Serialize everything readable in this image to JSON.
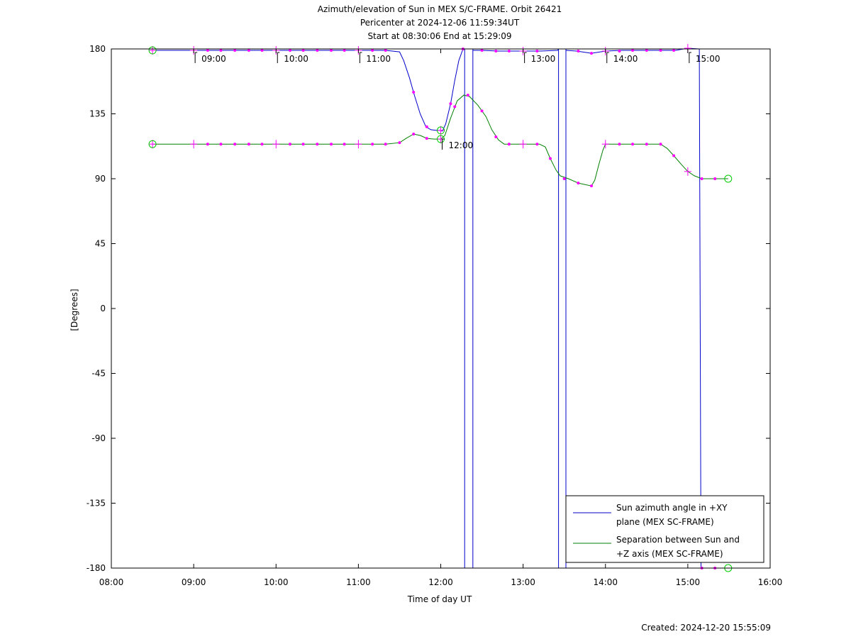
{
  "chart_data": {
    "type": "line",
    "title_lines": [
      "Azimuth/elevation of Sun in MEX S/C-FRAME.  Orbit 26421",
      "Pericenter at 2024-12-06 11:59:34UT",
      "Start at 08:30:06 End at 15:29:09"
    ],
    "xlabel": "Time of day UT",
    "ylabel": "[Degrees]",
    "xlim": [
      8.0,
      16.0
    ],
    "ylim": [
      -180,
      180
    ],
    "x_ticks": [
      "08:00",
      "09:00",
      "10:00",
      "11:00",
      "12:00",
      "13:00",
      "14:00",
      "15:00",
      "16:00"
    ],
    "y_ticks": [
      180,
      135,
      90,
      45,
      0,
      -45,
      -90,
      -135,
      -180
    ],
    "hour_annotations": [
      {
        "x": 9.0,
        "y": 180,
        "label": "09:00"
      },
      {
        "x": 10.0,
        "y": 180,
        "label": "10:00"
      },
      {
        "x": 11.0,
        "y": 180,
        "label": "11:00"
      },
      {
        "x": 12.0,
        "y": 120,
        "label": "12:00"
      },
      {
        "x": 13.0,
        "y": 180,
        "label": "13:00"
      },
      {
        "x": 14.0,
        "y": 180,
        "label": "14:00"
      },
      {
        "x": 15.0,
        "y": 180,
        "label": "15:00"
      }
    ],
    "series": [
      {
        "name": "Sun azimuth angle in +XY plane (MEX SC-FRAME)",
        "legend_lines": [
          "Sun azimuth angle in +XY",
          "plane (MEX SC-FRAME)"
        ],
        "color": "#0000cc",
        "segments": [
          [
            [
              8.5,
              179
            ],
            [
              9.0,
              179
            ],
            [
              9.5,
              179
            ],
            [
              10.0,
              179
            ],
            [
              10.5,
              179
            ],
            [
              11.0,
              179
            ],
            [
              11.33,
              179
            ],
            [
              11.5,
              178
            ],
            [
              11.55,
              172
            ],
            [
              11.62,
              160
            ],
            [
              11.68,
              148
            ],
            [
              11.75,
              135
            ],
            [
              11.82,
              126
            ],
            [
              11.88,
              124
            ],
            [
              11.95,
              123.5
            ],
            [
              12.0,
              123.5
            ],
            [
              12.02,
              123
            ],
            [
              12.06,
              128
            ],
            [
              12.12,
              142
            ],
            [
              12.17,
              158
            ],
            [
              12.22,
              172
            ],
            [
              12.27,
              180
            ]
          ],
          [
            [
              12.29,
              180
            ],
            [
              12.29,
              -180
            ]
          ],
          [
            [
              12.39,
              -180
            ],
            [
              12.39,
              180
            ]
          ],
          [
            [
              12.39,
              179
            ],
            [
              12.5,
              179
            ],
            [
              12.7,
              178.5
            ],
            [
              13.0,
              178.5
            ],
            [
              13.2,
              178.5
            ],
            [
              13.42,
              179
            ],
            [
              13.43,
              180
            ]
          ],
          [
            [
              13.43,
              180
            ],
            [
              13.43,
              -180
            ]
          ],
          [
            [
              13.52,
              -180
            ],
            [
              13.52,
              180
            ]
          ],
          [
            [
              13.52,
              179
            ],
            [
              13.65,
              178.5
            ],
            [
              13.83,
              177
            ],
            [
              14.0,
              178.5
            ],
            [
              14.2,
              179
            ],
            [
              14.5,
              179
            ],
            [
              14.85,
              179
            ],
            [
              15.0,
              180.5
            ],
            [
              15.14,
              180
            ]
          ],
          [
            [
              15.14,
              180
            ],
            [
              15.16,
              -180
            ]
          ],
          [
            [
              15.16,
              -180
            ],
            [
              15.3,
              -180
            ],
            [
              15.49,
              -180
            ]
          ]
        ],
        "markers": [
          [
            9.17,
            179
          ],
          [
            9.33,
            179
          ],
          [
            9.5,
            179
          ],
          [
            9.67,
            179
          ],
          [
            9.83,
            179
          ],
          [
            10.17,
            179
          ],
          [
            10.33,
            179
          ],
          [
            10.5,
            179
          ],
          [
            10.67,
            179
          ],
          [
            10.83,
            179
          ],
          [
            11.17,
            179
          ],
          [
            11.33,
            179
          ],
          [
            11.67,
            150
          ],
          [
            11.83,
            126
          ],
          [
            12.12,
            142
          ],
          [
            12.27,
            180
          ],
          [
            12.5,
            179
          ],
          [
            12.67,
            178.5
          ],
          [
            12.83,
            178.5
          ],
          [
            13.17,
            178.5
          ],
          [
            13.67,
            178.5
          ],
          [
            13.83,
            177
          ],
          [
            14.17,
            178.5
          ],
          [
            14.33,
            179
          ],
          [
            14.5,
            179
          ],
          [
            14.67,
            179
          ],
          [
            14.83,
            179
          ],
          [
            15.17,
            -180
          ],
          [
            15.33,
            -180
          ]
        ],
        "hour_crosses": [
          [
            8.5,
            179
          ],
          [
            9.0,
            179
          ],
          [
            10.0,
            179
          ],
          [
            11.0,
            179
          ],
          [
            12.0,
            123.5
          ],
          [
            13.0,
            178.5
          ],
          [
            14.0,
            178.5
          ],
          [
            15.0,
            180.5
          ]
        ],
        "end_circles": [
          [
            8.5,
            179
          ],
          [
            12.0,
            123.5
          ],
          [
            15.49,
            -180
          ]
        ]
      },
      {
        "name": "Separation between Sun and +Z axis (MEX SC-FRAME)",
        "legend_lines": [
          "Separation between Sun and",
          "+Z axis (MEX SC-FRAME)"
        ],
        "color": "#008000",
        "segments": [
          [
            [
              8.5,
              114
            ],
            [
              9.0,
              114
            ],
            [
              9.5,
              114
            ],
            [
              10.0,
              114
            ],
            [
              10.5,
              114
            ],
            [
              11.0,
              114
            ],
            [
              11.33,
              114
            ],
            [
              11.5,
              115
            ],
            [
              11.58,
              118
            ],
            [
              11.67,
              121
            ],
            [
              11.75,
              120
            ],
            [
              11.83,
              118
            ],
            [
              11.92,
              117.5
            ],
            [
              12.0,
              117.5
            ],
            [
              12.05,
              120
            ],
            [
              12.12,
              132
            ],
            [
              12.2,
              144
            ],
            [
              12.28,
              148
            ],
            [
              12.35,
              147
            ],
            [
              12.45,
              141
            ],
            [
              12.55,
              133
            ],
            [
              12.62,
              124
            ],
            [
              12.7,
              117
            ],
            [
              12.77,
              114
            ],
            [
              12.85,
              114
            ],
            [
              13.0,
              114
            ],
            [
              13.2,
              114
            ],
            [
              13.27,
              112
            ],
            [
              13.33,
              104
            ],
            [
              13.4,
              96
            ],
            [
              13.45,
              92
            ],
            [
              13.55,
              90
            ],
            [
              13.67,
              87
            ],
            [
              13.83,
              85
            ],
            [
              13.87,
              89
            ],
            [
              13.92,
              100
            ],
            [
              13.97,
              110
            ],
            [
              14.0,
              114
            ],
            [
              14.17,
              114
            ],
            [
              14.5,
              114
            ],
            [
              14.67,
              114
            ],
            [
              14.75,
              111
            ],
            [
              14.83,
              106
            ],
            [
              14.92,
              100
            ],
            [
              15.0,
              95
            ],
            [
              15.08,
              92
            ],
            [
              15.17,
              90
            ],
            [
              15.33,
              90
            ],
            [
              15.49,
              90
            ]
          ]
        ],
        "markers": [
          [
            9.17,
            114
          ],
          [
            9.33,
            114
          ],
          [
            9.5,
            114
          ],
          [
            9.67,
            114
          ],
          [
            9.83,
            114
          ],
          [
            10.17,
            114
          ],
          [
            10.33,
            114
          ],
          [
            10.5,
            114
          ],
          [
            10.67,
            114
          ],
          [
            10.83,
            114
          ],
          [
            11.17,
            114
          ],
          [
            11.33,
            114
          ],
          [
            11.5,
            115
          ],
          [
            11.67,
            121
          ],
          [
            11.83,
            118
          ],
          [
            12.17,
            140
          ],
          [
            12.33,
            148
          ],
          [
            12.5,
            137
          ],
          [
            12.67,
            119
          ],
          [
            12.83,
            114
          ],
          [
            13.17,
            114
          ],
          [
            13.33,
            104
          ],
          [
            13.5,
            90
          ],
          [
            13.67,
            87
          ],
          [
            13.83,
            85
          ],
          [
            14.17,
            114
          ],
          [
            14.33,
            114
          ],
          [
            14.5,
            114
          ],
          [
            14.67,
            114
          ],
          [
            14.83,
            106
          ],
          [
            15.17,
            90
          ],
          [
            15.33,
            90
          ]
        ],
        "hour_crosses": [
          [
            8.5,
            114
          ],
          [
            9.0,
            114
          ],
          [
            10.0,
            114
          ],
          [
            11.0,
            114
          ],
          [
            12.0,
            117.5
          ],
          [
            13.0,
            114
          ],
          [
            14.0,
            114
          ],
          [
            15.0,
            95
          ]
        ],
        "end_circles": [
          [
            8.5,
            114
          ],
          [
            12.0,
            117.5
          ],
          [
            15.49,
            90
          ]
        ]
      }
    ],
    "legend_position": "lower-right",
    "grid": false,
    "colors": {
      "marker": "#ff00ff",
      "circle": "#00cc00"
    }
  },
  "footer": {
    "created": "Created: 2024-12-20 15:55:09"
  }
}
